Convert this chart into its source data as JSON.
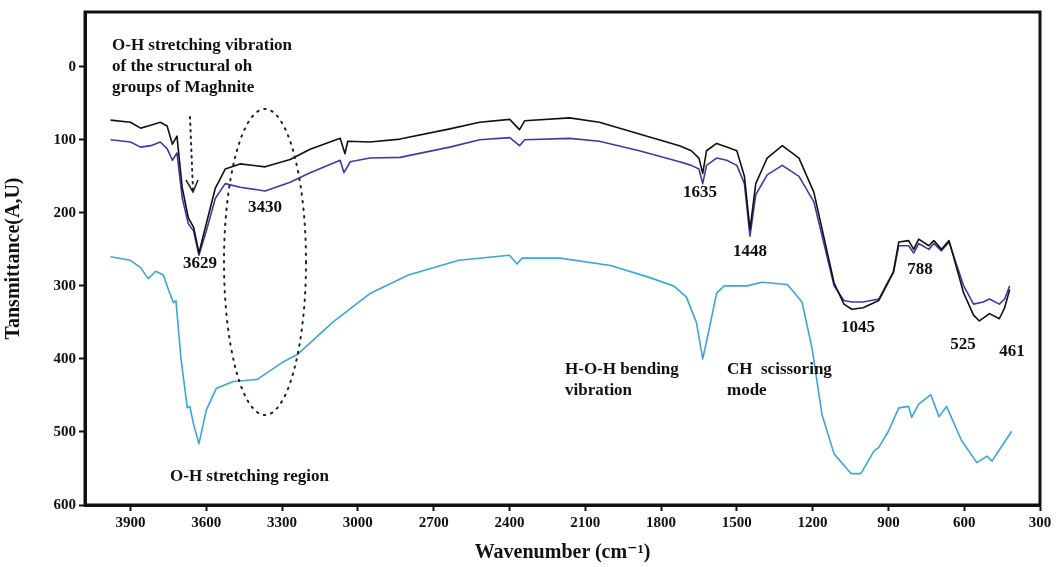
{
  "chart_data": {
    "type": "line",
    "xlabel": "Wavenumber (cm⁻¹)",
    "ylabel": "Tansmittance(A,U)",
    "xlim": [
      4080,
      300
    ],
    "xticks": [
      3900,
      3600,
      3300,
      3000,
      2700,
      2400,
      2100,
      1800,
      1500,
      1200,
      900,
      600,
      300
    ],
    "ylim": [
      600,
      -75
    ],
    "yticks": [
      0,
      100,
      200,
      300,
      400,
      500,
      600
    ],
    "grid": false,
    "legend": false,
    "series": [
      {
        "color": "#111111",
        "x": [
          3979,
          3900,
          3860,
          3820,
          3782,
          3755,
          3734,
          3716,
          3695,
          3671,
          3650,
          3629,
          3600,
          3564,
          3525,
          3466,
          3367,
          3268,
          3189,
          3070,
          3051,
          3040,
          2952,
          2833,
          2636,
          2518,
          2399,
          2360,
          2340,
          2162,
          2044,
          1886,
          1727,
          1680,
          1650,
          1635,
          1620,
          1580,
          1540,
          1500,
          1470,
          1448,
          1425,
          1380,
          1320,
          1254,
          1195,
          1115,
          1076,
          1045,
          1000,
          938,
          900,
          880,
          859,
          820,
          800,
          780,
          740,
          720,
          690,
          660,
          602,
          563,
          540,
          500,
          461,
          440,
          420
        ],
        "values": [
          73,
          76,
          84,
          80,
          76,
          81,
          106,
          95,
          166,
          207,
          220,
          255,
          215,
          166,
          140,
          133,
          137,
          127,
          113,
          98,
          119,
          102,
          103,
          99,
          85,
          76,
          72,
          86,
          74,
          70,
          76,
          92,
          108,
          115,
          125,
          146,
          115,
          105,
          110,
          115,
          150,
          223,
          160,
          125,
          108,
          125,
          172,
          296,
          325,
          332,
          330,
          320,
          295,
          280,
          240,
          238,
          250,
          236,
          245,
          238,
          250,
          238,
          310,
          340,
          348,
          338,
          345,
          330,
          305
        ]
      },
      {
        "color": "#3b3ba8",
        "x": [
          3979,
          3900,
          3860,
          3820,
          3782,
          3755,
          3734,
          3716,
          3695,
          3671,
          3650,
          3629,
          3600,
          3564,
          3525,
          3466,
          3367,
          3268,
          3189,
          3070,
          3055,
          3030,
          2952,
          2833,
          2636,
          2518,
          2399,
          2360,
          2340,
          2162,
          2044,
          1886,
          1727,
          1680,
          1650,
          1635,
          1620,
          1580,
          1540,
          1500,
          1470,
          1448,
          1425,
          1380,
          1320,
          1254,
          1195,
          1115,
          1076,
          1045,
          1000,
          938,
          900,
          880,
          859,
          820,
          800,
          780,
          740,
          720,
          690,
          660,
          602,
          563,
          525,
          500,
          461,
          440,
          420
        ],
        "values": [
          100,
          103,
          110,
          108,
          103,
          112,
          128,
          118,
          180,
          215,
          225,
          258,
          225,
          180,
          160,
          165,
          170,
          158,
          145,
          128,
          145,
          130,
          125,
          124,
          110,
          100,
          97,
          108,
          100,
          98,
          102,
          115,
          130,
          135,
          140,
          160,
          135,
          125,
          128,
          135,
          160,
          232,
          175,
          148,
          135,
          150,
          185,
          300,
          320,
          322,
          322,
          318,
          293,
          282,
          245,
          245,
          255,
          242,
          250,
          242,
          252,
          240,
          300,
          325,
          322,
          318,
          325,
          318,
          300
        ]
      },
      {
        "color": "#3aa6dc",
        "x": [
          3979,
          3900,
          3860,
          3830,
          3800,
          3770,
          3750,
          3730,
          3720,
          3700,
          3675,
          3665,
          3650,
          3629,
          3600,
          3560,
          3493,
          3398,
          3300,
          3240,
          3100,
          2950,
          2800,
          2600,
          2400,
          2370,
          2350,
          2200,
          2000,
          1850,
          1750,
          1700,
          1660,
          1635,
          1610,
          1580,
          1550,
          1500,
          1460,
          1400,
          1300,
          1242,
          1202,
          1163,
          1115,
          1048,
          1009,
          957,
          938,
          900,
          859,
          820,
          808,
          780,
          732,
          700,
          670,
          610,
          550,
          510,
          490,
          464,
          412
        ],
        "values": [
          260,
          265,
          275,
          290,
          280,
          285,
          305,
          323,
          320,
          400,
          467,
          465,
          490,
          516,
          470,
          440,
          431,
          428,
          405,
          394,
          350,
          310,
          285,
          265,
          258,
          270,
          262,
          262,
          272,
          288,
          300,
          315,
          350,
          400,
          360,
          310,
          300,
          300,
          300,
          295,
          298,
          322,
          386,
          476,
          530,
          557,
          557,
          526,
          521,
          499,
          467,
          465,
          480,
          462,
          449,
          479,
          465,
          512,
          542,
          533,
          540,
          526,
          499
        ]
      }
    ],
    "annotations": [
      "O-H stretching vibration\nof the structural oh\ngroups of Maghnite",
      "3629",
      "3430",
      "1635",
      "1448",
      "1045",
      "788",
      "525",
      "461",
      "O-H stretching region",
      "H-O-H bending\nvibration",
      "CH  scissoring\nmode"
    ]
  }
}
